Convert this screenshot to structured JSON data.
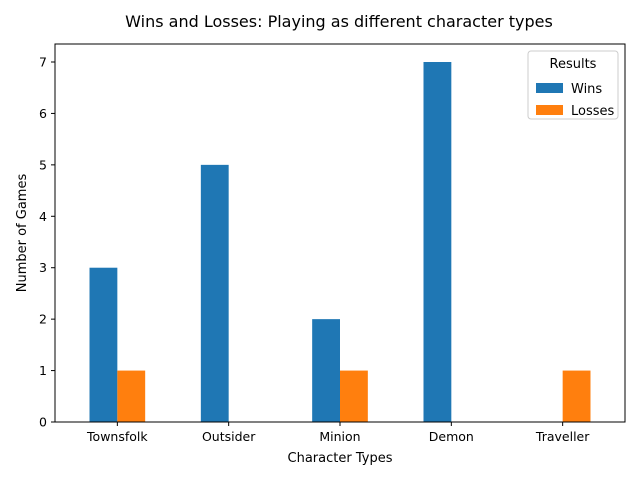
{
  "chart_data": {
    "type": "bar",
    "title": "Wins and Losses: Playing as different character types",
    "xlabel": "Character Types",
    "ylabel": "Number of Games",
    "categories": [
      "Townsfolk",
      "Outsider",
      "Minion",
      "Demon",
      "Traveller"
    ],
    "series": [
      {
        "name": "Wins",
        "values": [
          3,
          5,
          2,
          7,
          0
        ],
        "color": "#1f77b4"
      },
      {
        "name": "Losses",
        "values": [
          1,
          0,
          1,
          0,
          1
        ],
        "color": "#ff7f0e"
      }
    ],
    "ylim": [
      0,
      7.35
    ],
    "yticks": [
      0,
      1,
      2,
      3,
      4,
      5,
      6,
      7
    ],
    "legend": {
      "title": "Results",
      "position": "top-right"
    },
    "grid": false
  }
}
